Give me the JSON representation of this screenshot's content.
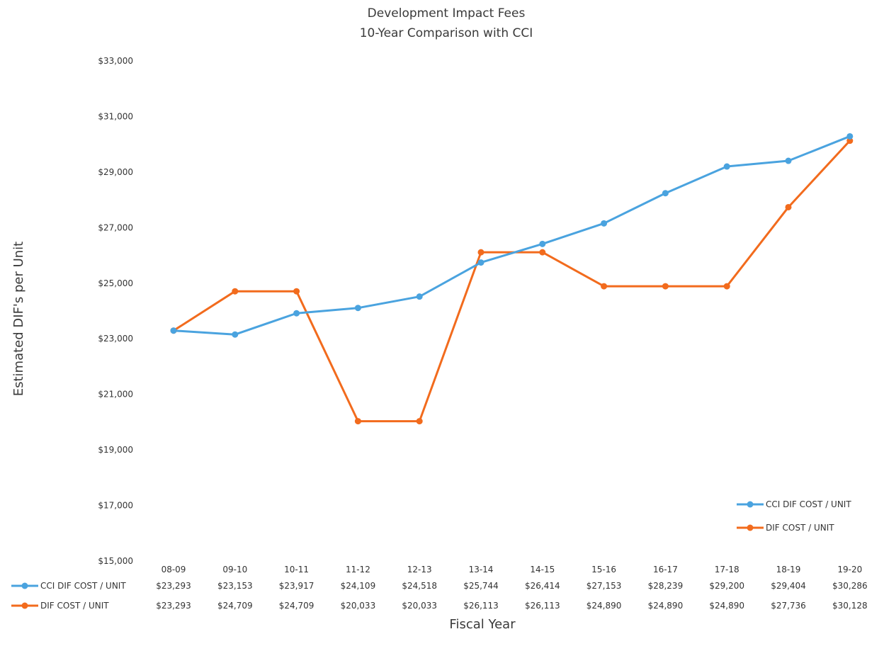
{
  "chart_data": {
    "type": "line",
    "title": "Development Impact Fees",
    "subtitle": "10-Year Comparison with CCI",
    "xlabel": "Fiscal Year",
    "ylabel": "Estimated DIF's per Unit",
    "ylim": [
      15000,
      33000
    ],
    "yticks": [
      15000,
      17000,
      19000,
      21000,
      23000,
      25000,
      27000,
      29000,
      31000,
      33000
    ],
    "ytick_labels": [
      "$15,000",
      "$17,000",
      "$19,000",
      "$21,000",
      "$23,000",
      "$25,000",
      "$27,000",
      "$29,000",
      "$31,000",
      "$33,000"
    ],
    "categories": [
      "08-09",
      "09-10",
      "10-11",
      "11-12",
      "12-13",
      "13-14",
      "14-15",
      "15-16",
      "16-17",
      "17-18",
      "18-19",
      "19-20"
    ],
    "grid": false,
    "legend_position": "bottom-right",
    "series": [
      {
        "name": "CCI DIF COST / UNIT",
        "color": "#4aa3df",
        "values": [
          23293,
          23153,
          23917,
          24109,
          24518,
          25744,
          26414,
          27153,
          28239,
          29200,
          29404,
          30286
        ],
        "table_values": [
          "$23,293",
          "$23,153",
          "$23,917",
          "$24,109",
          "$24,518",
          "$25,744",
          "$26,414",
          "$27,153",
          "$28,239",
          "$29,200",
          "$29,404",
          "$30,286"
        ]
      },
      {
        "name": "DIF COST / UNIT",
        "color": "#f26b1d",
        "values": [
          23293,
          24709,
          24709,
          20033,
          20033,
          26113,
          26113,
          24890,
          24890,
          24890,
          27736,
          30128
        ],
        "table_values": [
          "$23,293",
          "$24,709",
          "$24,709",
          "$20,033",
          "$20,033",
          "$26,113",
          "$26,113",
          "$24,890",
          "$24,890",
          "$24,890",
          "$27,736",
          "$30,128"
        ]
      }
    ]
  }
}
